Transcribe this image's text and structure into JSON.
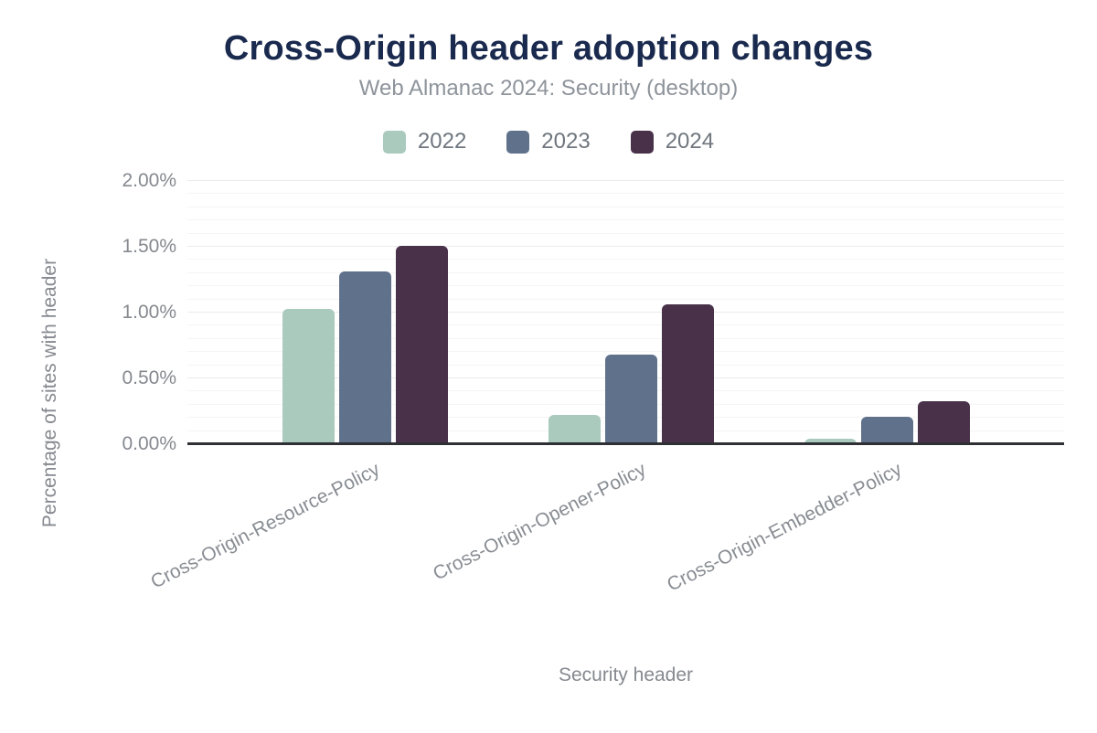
{
  "chart_data": {
    "type": "bar",
    "title": "Cross-Origin header adoption changes",
    "subtitle": "Web Almanac 2024: Security (desktop)",
    "categories": [
      "Cross-Origin-Resource-Policy",
      "Cross-Origin-Opener-Policy",
      "Cross-Origin-Embedder-Policy"
    ],
    "series": [
      {
        "name": "2022",
        "color": "#a9cabc",
        "values": [
          1.03,
          0.22,
          0.04
        ]
      },
      {
        "name": "2023",
        "color": "#60718b",
        "values": [
          1.31,
          0.68,
          0.21
        ]
      },
      {
        "name": "2024",
        "color": "#483149",
        "values": [
          1.51,
          1.06,
          0.33
        ]
      }
    ],
    "unit": "%",
    "xlabel": "Security header",
    "ylabel": "Percentage of sites with header",
    "ylim": [
      0,
      2.0
    ],
    "yticks": [
      {
        "value": 0.0,
        "label": "0.00%"
      },
      {
        "value": 0.5,
        "label": "0.50%"
      },
      {
        "value": 1.0,
        "label": "1.00%"
      },
      {
        "value": 1.5,
        "label": "1.50%"
      },
      {
        "value": 2.0,
        "label": "2.00%"
      }
    ],
    "y_minor_step": 0.1,
    "y_major_step": 0.5,
    "grid": true,
    "legend_position": "top"
  },
  "colors": {
    "title": "#1a2a4e",
    "subtitle": "#8e949b",
    "axis_line": "#2f3033",
    "tick_label": "#85898f",
    "grid_minor": "#f5f5f5",
    "grid_major": "#ebebeb",
    "background": "#ffffff"
  }
}
